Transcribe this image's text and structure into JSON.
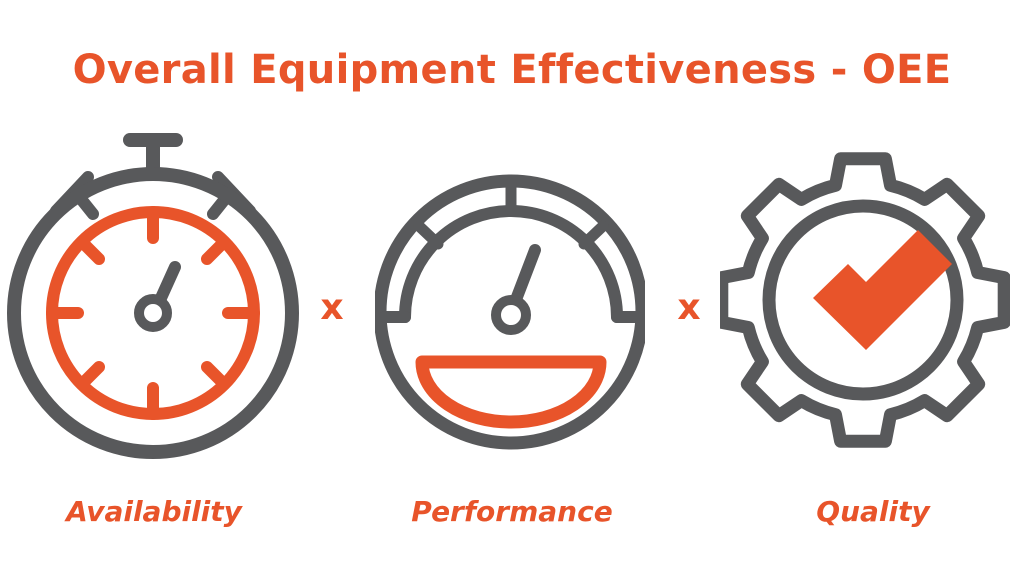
{
  "title": "Overall Equipment Effectiveness - OEE",
  "operators": [
    "x",
    "x"
  ],
  "factors": [
    {
      "label": "Availability",
      "icon": "stopwatch-icon"
    },
    {
      "label": "Performance",
      "icon": "speedometer-icon"
    },
    {
      "label": "Quality",
      "icon": "gear-checkmark-icon"
    }
  ],
  "colors": {
    "accent": "#e8542a",
    "icon_stroke": "#58595b",
    "background": "#ffffff"
  }
}
